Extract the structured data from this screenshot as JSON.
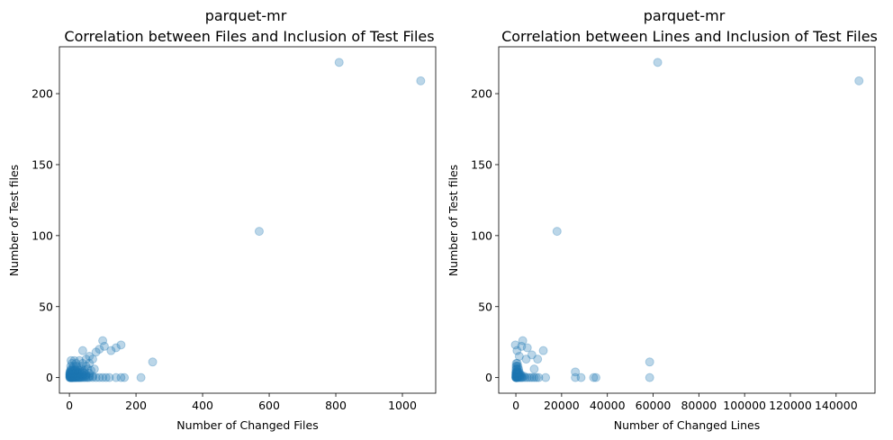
{
  "chart_data": [
    {
      "type": "scatter",
      "title_lines": [
        "parquet-mr",
        "Correlation between Files and Inclusion of Test Files"
      ],
      "xlabel": "Number of Changed Files",
      "ylabel": "Number of Test files",
      "xlim": [
        -30,
        1100
      ],
      "ylim": [
        -11,
        233
      ],
      "xticks": [
        0,
        200,
        400,
        600,
        800,
        1000
      ],
      "yticks": [
        0,
        50,
        100,
        150,
        200
      ],
      "point_color": "#1f77b4",
      "series": [
        {
          "x": [
            1,
            2,
            3,
            4,
            5,
            6,
            7,
            8,
            9,
            10,
            12,
            14,
            16,
            18,
            20,
            22,
            25,
            28,
            30,
            33,
            36,
            40,
            45,
            50,
            55,
            60,
            70,
            80,
            90,
            100,
            110,
            120,
            140,
            155,
            165,
            215,
            1,
            2,
            3,
            4,
            5,
            6,
            8,
            10,
            12,
            15,
            18,
            22,
            26,
            30,
            35,
            40,
            45,
            50,
            60,
            70,
            1,
            2,
            3,
            5,
            7,
            9,
            12,
            15,
            20,
            25,
            30,
            40,
            50,
            1,
            2,
            4,
            6,
            8,
            10,
            14,
            18,
            22,
            28,
            35,
            45,
            60,
            2,
            5,
            8,
            12,
            16,
            22,
            30,
            40,
            3,
            6,
            10,
            15,
            20,
            30,
            45,
            65,
            5,
            10,
            18,
            25,
            38,
            55,
            75,
            4,
            12,
            22,
            35,
            50,
            8,
            20,
            40,
            60,
            5,
            15,
            30,
            40,
            50,
            60,
            70,
            80,
            90,
            100,
            105,
            125,
            140,
            155,
            250,
            570,
            810,
            1055
          ],
          "y": [
            0,
            0,
            0,
            0,
            0,
            0,
            0,
            0,
            0,
            0,
            0,
            0,
            0,
            0,
            0,
            0,
            0,
            0,
            0,
            0,
            0,
            0,
            0,
            0,
            0,
            0,
            0,
            0,
            0,
            0,
            0,
            0,
            0,
            0,
            0,
            0,
            1,
            1,
            1,
            1,
            1,
            1,
            1,
            1,
            1,
            1,
            1,
            1,
            1,
            1,
            1,
            1,
            1,
            1,
            1,
            1,
            2,
            2,
            2,
            2,
            2,
            2,
            2,
            2,
            2,
            2,
            2,
            2,
            2,
            3,
            3,
            3,
            3,
            3,
            3,
            3,
            3,
            3,
            3,
            3,
            3,
            3,
            4,
            4,
            4,
            4,
            4,
            4,
            4,
            4,
            5,
            5,
            5,
            5,
            5,
            5,
            5,
            5,
            6,
            6,
            6,
            6,
            6,
            6,
            6,
            8,
            8,
            8,
            8,
            8,
            10,
            10,
            10,
            10,
            12,
            12,
            12,
            19,
            13,
            15,
            13,
            18,
            20,
            26,
            22,
            19,
            21,
            23,
            11,
            103,
            222,
            209
          ]
        }
      ]
    },
    {
      "type": "scatter",
      "title_lines": [
        "parquet-mr",
        "Correlation between Lines and Inclusion of Test Files"
      ],
      "xlabel": "Number of Changed Lines",
      "ylabel": "Number of Test files",
      "xlim": [
        -7500,
        157000
      ],
      "ylim": [
        -11,
        233
      ],
      "xticks": [
        0,
        20000,
        40000,
        60000,
        80000,
        100000,
        120000,
        140000
      ],
      "yticks": [
        0,
        50,
        100,
        150,
        200
      ],
      "point_color": "#1f77b4",
      "series": [
        {
          "x": [
            10,
            50,
            100,
            200,
            300,
            500,
            700,
            1000,
            1500,
            2000,
            2500,
            3000,
            4000,
            5000,
            6000,
            7000,
            8000,
            9000,
            10000,
            13000,
            26000,
            28500,
            34000,
            35000,
            58500,
            20,
            80,
            150,
            300,
            500,
            800,
            1200,
            1800,
            2500,
            3500,
            30,
            100,
            250,
            450,
            700,
            1100,
            1600,
            2200,
            40,
            150,
            350,
            600,
            1000,
            1500,
            60,
            200,
            500,
            900,
            1400,
            80,
            300,
            700,
            1200,
            100,
            400,
            900,
            200,
            600,
            -200,
            500,
            1500,
            2500,
            3000,
            4500,
            5000,
            7000,
            8000,
            9500,
            12000,
            26000,
            58500,
            18000,
            62000,
            150000
          ],
          "y": [
            0,
            0,
            0,
            0,
            0,
            0,
            0,
            0,
            0,
            0,
            0,
            0,
            0,
            0,
            0,
            0,
            0,
            0,
            0,
            0,
            0,
            0,
            0,
            0,
            0,
            1,
            1,
            1,
            1,
            1,
            1,
            1,
            1,
            1,
            1,
            2,
            2,
            2,
            2,
            2,
            2,
            2,
            2,
            3,
            3,
            3,
            3,
            3,
            3,
            4,
            4,
            4,
            4,
            4,
            6,
            6,
            6,
            6,
            8,
            8,
            8,
            10,
            10,
            23,
            19,
            15,
            22,
            26,
            13,
            21,
            16,
            6,
            13,
            19,
            4,
            11,
            103,
            222,
            209
          ]
        }
      ]
    }
  ]
}
